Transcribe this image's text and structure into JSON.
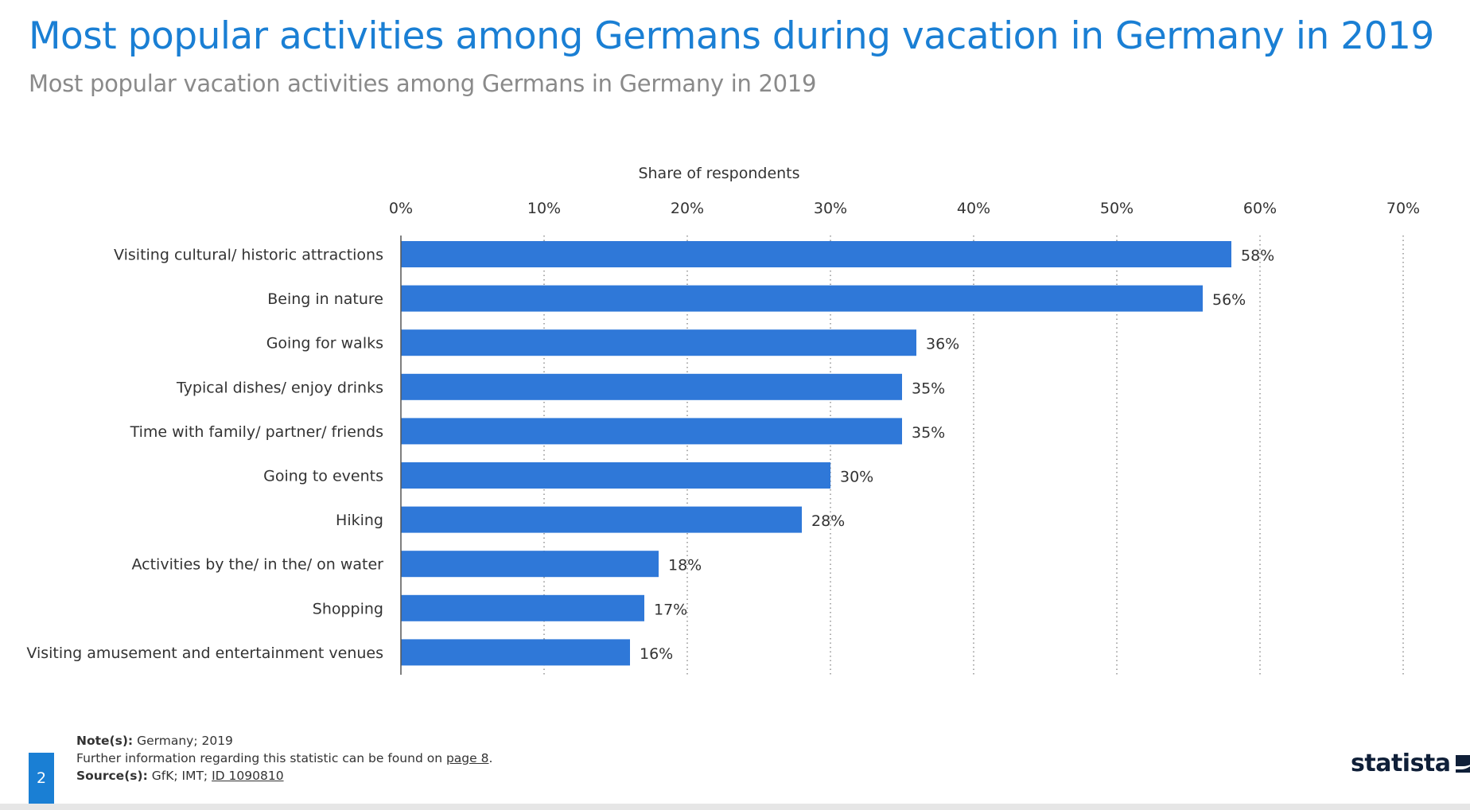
{
  "header": {
    "title": "Most popular activities among Germans during vacation in Germany in 2019",
    "subtitle": "Most popular vacation activities among Germans in Germany in 2019"
  },
  "chart_data": {
    "type": "bar",
    "orientation": "horizontal",
    "title": "Most popular activities among Germans during vacation in Germany in 2019",
    "xlabel": "Share of respondents",
    "ylabel": "",
    "xlim": [
      0,
      70
    ],
    "ticks": [
      0,
      10,
      20,
      30,
      40,
      50,
      60,
      70
    ],
    "tick_labels": [
      "0%",
      "10%",
      "20%",
      "30%",
      "40%",
      "50%",
      "60%",
      "70%"
    ],
    "grid": true,
    "bar_color": "#2f78d8",
    "categories": [
      "Visiting cultural/ historic attractions",
      "Being in nature",
      "Going for walks",
      "Typical dishes/ enjoy drinks",
      "Time with family/ partner/ friends",
      "Going to events",
      "Hiking",
      "Activities by the/ in the/ on water",
      "Shopping",
      "Visiting amusement and entertainment venues"
    ],
    "values": [
      58,
      56,
      36,
      35,
      35,
      30,
      28,
      18,
      17,
      16
    ],
    "value_labels": [
      "58%",
      "56%",
      "36%",
      "35%",
      "35%",
      "30%",
      "28%",
      "18%",
      "17%",
      "16%"
    ]
  },
  "footer": {
    "page_number": "2",
    "notes_label": "Note(s):",
    "notes_value": "Germany; 2019",
    "further_info": "Further information regarding this statistic can be found on",
    "further_info_link": "page 8",
    "further_info_end": ".",
    "source_label": "Source(s):",
    "source_value": "GfK; IMT;",
    "source_link": "ID 1090810",
    "logo_text": "statista"
  },
  "colors": {
    "title": "#1a7fd4",
    "subtitle": "#8a8a8a",
    "bar": "#2f78d8",
    "logo": "#0f1f38"
  }
}
